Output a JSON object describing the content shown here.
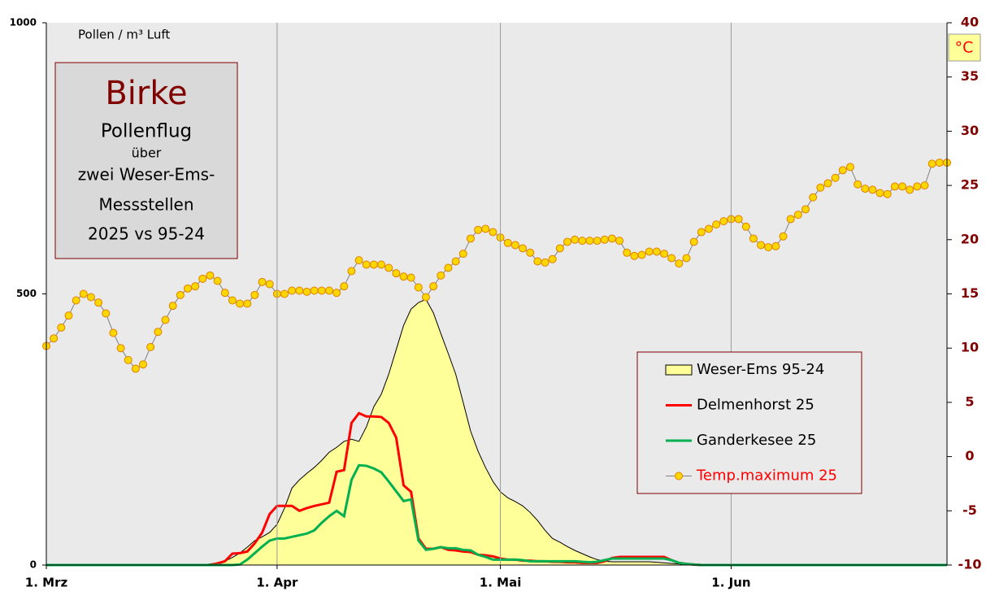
{
  "chart_data": {
    "type": "line",
    "title": "Birke",
    "annotations": [
      "Pollenflug",
      "über",
      "zwei Weser-Ems-",
      "Messstellen",
      "2025 vs 95-24"
    ],
    "y_label": "Pollen / m³ Luft",
    "y2_label": "°C",
    "legend": "right",
    "xlim": [
      0,
      121
    ],
    "xticks": [
      {
        "value": 0,
        "label": "1. Mrz"
      },
      {
        "value": 31,
        "label": "1. Apr"
      },
      {
        "value": 61,
        "label": "1. Mai"
      },
      {
        "value": 92,
        "label": "1. Jun"
      }
    ],
    "ylim": [
      0,
      1000
    ],
    "yticks": [
      0,
      500,
      1000
    ],
    "y2lim": [
      -10,
      40
    ],
    "y2ticks": [
      -10,
      -5,
      0,
      5,
      10,
      15,
      20,
      25,
      30,
      35,
      40
    ],
    "grid": true,
    "x": [
      0,
      1,
      2,
      3,
      4,
      5,
      6,
      7,
      8,
      9,
      10,
      11,
      12,
      13,
      14,
      15,
      16,
      17,
      18,
      19,
      20,
      21,
      22,
      23,
      24,
      25,
      26,
      27,
      28,
      29,
      30,
      31,
      32,
      33,
      34,
      35,
      36,
      37,
      38,
      39,
      40,
      41,
      42,
      43,
      44,
      45,
      46,
      47,
      48,
      49,
      50,
      51,
      52,
      53,
      54,
      55,
      56,
      57,
      58,
      59,
      60,
      61,
      62,
      63,
      64,
      65,
      66,
      67,
      68,
      69,
      70,
      71,
      72,
      73,
      74,
      75,
      76,
      77,
      78,
      79,
      80,
      81,
      82,
      83,
      84,
      85,
      86,
      87,
      88,
      89,
      90,
      91,
      92,
      93,
      94,
      95,
      96,
      97,
      98,
      99,
      100,
      101,
      102,
      103,
      104,
      105,
      106,
      107,
      108,
      109,
      110,
      111,
      112,
      113,
      114,
      115,
      116,
      117,
      118,
      119,
      120,
      121
    ],
    "series": [
      {
        "name": "Weser-Ems 95-24",
        "kind": "area",
        "color": "#ffff99",
        "values": [
          0,
          0,
          0,
          0,
          0,
          0,
          0,
          0,
          0,
          0,
          0,
          0,
          0,
          0,
          0,
          0,
          0,
          0,
          0,
          0,
          0,
          0,
          2,
          4,
          7,
          14,
          22,
          33,
          45,
          52,
          60,
          75,
          105,
          142,
          157,
          169,
          180,
          193,
          208,
          217,
          228,
          232,
          228,
          255,
          292,
          315,
          352,
          397,
          442,
          472,
          484,
          490,
          465,
          427,
          390,
          352,
          300,
          247,
          210,
          180,
          154,
          135,
          124,
          117,
          109,
          97,
          82,
          64,
          49,
          42,
          34,
          27,
          21,
          15,
          10,
          7,
          6,
          6,
          6,
          6,
          6,
          6,
          5,
          4,
          3,
          2,
          0,
          0,
          0,
          0,
          0,
          0,
          0,
          0,
          0,
          0,
          0,
          0,
          0,
          0,
          0,
          0,
          0,
          0,
          0,
          0,
          0,
          0,
          0,
          0,
          0,
          0,
          0,
          0,
          0,
          0,
          0,
          0,
          0,
          0,
          0,
          0
        ]
      },
      {
        "name": "Delmenhorst 25",
        "kind": "line",
        "color": "#ff0000",
        "values": [
          0,
          0,
          0,
          0,
          0,
          0,
          0,
          0,
          0,
          0,
          0,
          0,
          0,
          0,
          0,
          0,
          0,
          0,
          0,
          0,
          0,
          0,
          0,
          3,
          7,
          21,
          22,
          25,
          40,
          60,
          94,
          109,
          109,
          109,
          100,
          105,
          109,
          112,
          115,
          172,
          175,
          262,
          280,
          274,
          274,
          273,
          262,
          235,
          147,
          135,
          49,
          30,
          30,
          33,
          28,
          27,
          25,
          24,
          19,
          18,
          16,
          12,
          10,
          10,
          8,
          8,
          7,
          7,
          6,
          6,
          5,
          5,
          4,
          4,
          4,
          7,
          13,
          15,
          15,
          15,
          15,
          15,
          15,
          15,
          9,
          4,
          2,
          1,
          0,
          0,
          0,
          0,
          0,
          0,
          0,
          0,
          0,
          0,
          0,
          0,
          0,
          0,
          0,
          0,
          0,
          0,
          0,
          0,
          0,
          0,
          0,
          0,
          0,
          0,
          0,
          0,
          0,
          0,
          0,
          0,
          0,
          0
        ]
      },
      {
        "name": "Ganderkesee 25",
        "kind": "line",
        "color": "#00b050",
        "values": [
          0,
          0,
          0,
          0,
          0,
          0,
          0,
          0,
          0,
          0,
          0,
          0,
          0,
          0,
          0,
          0,
          0,
          0,
          0,
          0,
          0,
          0,
          0,
          0,
          0,
          0,
          1,
          10,
          22,
          34,
          45,
          49,
          49,
          52,
          55,
          58,
          64,
          78,
          90,
          100,
          90,
          157,
          184,
          183,
          178,
          171,
          154,
          136,
          118,
          121,
          45,
          28,
          30,
          33,
          31,
          31,
          28,
          27,
          19,
          15,
          10,
          10,
          10,
          10,
          9,
          7,
          7,
          7,
          7,
          7,
          7,
          7,
          6,
          5,
          6,
          9,
          12,
          12,
          12,
          12,
          12,
          12,
          12,
          12,
          9,
          4,
          2,
          1,
          0,
          0,
          0,
          0,
          0,
          0,
          0,
          0,
          0,
          0,
          0,
          0,
          0,
          0,
          0,
          0,
          0,
          0,
          0,
          0,
          0,
          0,
          0,
          0,
          0,
          0,
          0,
          0,
          0,
          0,
          0,
          0,
          0,
          0
        ]
      },
      {
        "name": "Temp.maximum 25",
        "kind": "marker-line",
        "axis": "y2",
        "color": "#808080",
        "marker_color": "#ffd700",
        "values": [
          10.2,
          10.9,
          11.9,
          13.0,
          14.4,
          15.0,
          14.7,
          14.2,
          13.2,
          11.4,
          10.0,
          8.9,
          8.1,
          8.5,
          10.1,
          11.5,
          12.6,
          13.9,
          14.9,
          15.5,
          15.7,
          16.4,
          16.7,
          16.2,
          15.1,
          14.4,
          14.1,
          14.1,
          14.9,
          16.1,
          15.9,
          15.0,
          15.0,
          15.3,
          15.3,
          15.2,
          15.3,
          15.3,
          15.3,
          15.1,
          15.7,
          17.1,
          18.1,
          17.7,
          17.7,
          17.7,
          17.4,
          16.9,
          16.6,
          16.5,
          15.6,
          14.7,
          15.7,
          16.7,
          17.4,
          18.0,
          18.7,
          20.1,
          20.9,
          21.0,
          20.7,
          20.2,
          19.7,
          19.5,
          19.2,
          18.8,
          18.0,
          17.9,
          18.2,
          19.2,
          19.8,
          20.0,
          19.9,
          19.9,
          19.9,
          20.0,
          20.1,
          19.9,
          18.8,
          18.5,
          18.6,
          18.9,
          18.9,
          18.7,
          18.3,
          17.8,
          18.3,
          19.8,
          20.7,
          21.0,
          21.4,
          21.7,
          21.9,
          21.9,
          21.2,
          20.1,
          19.5,
          19.3,
          19.4,
          20.3,
          21.9,
          22.3,
          22.8,
          23.9,
          24.8,
          25.2,
          25.7,
          26.4,
          26.7,
          25.1,
          24.7,
          24.6,
          24.3,
          24.2,
          24.9,
          24.9,
          24.6,
          24.9,
          25.0,
          27.0,
          27.1,
          27.1
        ]
      }
    ]
  }
}
